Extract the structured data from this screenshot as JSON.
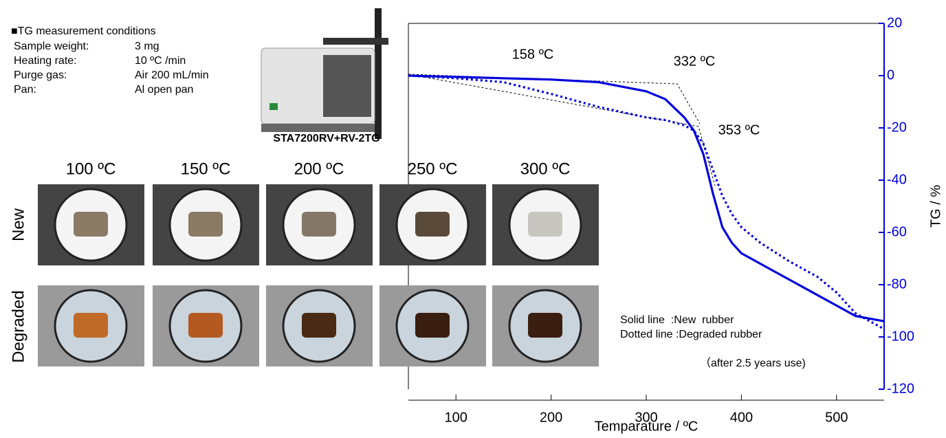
{
  "conditions": {
    "heading": "■TG measurement conditions",
    "rows": [
      [
        "Sample weight:",
        "3 mg"
      ],
      [
        "Heating rate:",
        "10 ºC /min"
      ],
      [
        "Purge gas:",
        "Air 200 mL/min"
      ],
      [
        "Pan:",
        "Al  open pan"
      ]
    ]
  },
  "instrument": "STA7200RV+RV-2TG",
  "photos": {
    "temperatures": [
      "100 ºC",
      "150 ºC",
      "200 ºC",
      "250 ºC",
      "300 ºC"
    ],
    "rows": [
      "New",
      "Degraded"
    ]
  },
  "chart_data": {
    "type": "line",
    "x_label": "Temparature / ºC",
    "y_label": "TG / %",
    "annotations": [
      "158 ºC",
      "332 ºC",
      "353 ºC"
    ],
    "legend_note": "（after 2.5 years use)",
    "x": [
      50,
      100,
      150,
      200,
      250,
      300,
      320,
      340,
      350,
      360,
      370,
      380,
      390,
      400,
      420,
      450,
      480,
      500,
      520,
      550
    ],
    "series": [
      {
        "name": "Solid line  :New  rubber",
        "color": "#0000dd",
        "style": "solid",
        "values": [
          0,
          -0.5,
          -1,
          -1.5,
          -2.5,
          -6,
          -9,
          -16,
          -21,
          -30,
          -45,
          -58,
          -64,
          -68,
          -72,
          -78,
          -84,
          -88,
          -92,
          -94
        ]
      },
      {
        "name": "Dotted line :Degraded rubber",
        "color": "#0000dd",
        "style": "dotted",
        "values": [
          0,
          -1,
          -2.5,
          -7,
          -12,
          -16,
          -17,
          -19,
          -21,
          -26,
          -36,
          -46,
          -53,
          -58,
          -64,
          -71,
          -77,
          -83,
          -91,
          -97
        ]
      }
    ],
    "xlim": [
      50,
      550
    ],
    "xticks": [
      100,
      200,
      300,
      400,
      500
    ],
    "ylim": [
      -120,
      20
    ],
    "yticks": [
      -120,
      -100,
      -80,
      -60,
      -40,
      -20,
      0,
      20
    ],
    "axis_color": "#0000dd"
  }
}
